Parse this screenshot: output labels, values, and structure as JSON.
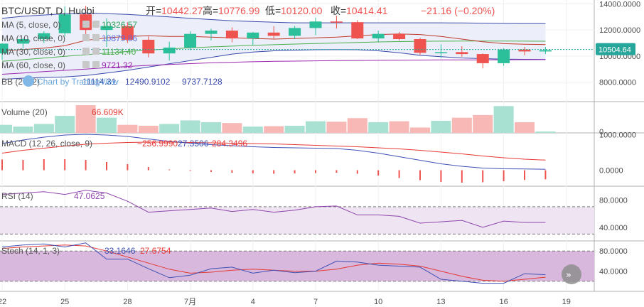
{
  "header": {
    "symbol": "BTC/USDT, D, Huobi",
    "open_label": "开=",
    "open": "10442.27",
    "high_label": "高=",
    "high": "10776.99",
    "low_label": "低=",
    "low": "10120.00",
    "close_label": "收=",
    "close": "10414.41",
    "change": "−21.16 (−0.20%)"
  },
  "colors": {
    "up": "#26a69a",
    "up_body": "#2bbf9a",
    "down": "#ef5350",
    "up_vol": "#a8e0d1",
    "down_vol": "#f7b8b6",
    "ma5": "#2fa35a",
    "ma10": "#5b6ee0",
    "ma30": "#4caf50",
    "ma60": "#9c27b0",
    "bb_band": "#3949ab",
    "bb_fill": "#eceff9",
    "macd": "#3f51b5",
    "signal": "#e53935",
    "rsi": "#8e44ad",
    "rsi_fill": "#efe4f2",
    "stoch_k": "#3f51b5",
    "stoch_d": "#e53935",
    "stoch_fill": "#d8b8dc",
    "price_tag": "#26a69a"
  },
  "price_panel": {
    "indicators": [
      {
        "label": "MA (5, close, 0)",
        "value": "10326.57",
        "color": "#2fa35a"
      },
      {
        "label": "MA (10, close, 0)",
        "value": "10879.86",
        "color": "#5b6ee0"
      },
      {
        "label": "MA (30, close, 0)",
        "value": "11134.40",
        "color": "#4caf50"
      },
      {
        "label": "MA (60, close, 0)",
        "value": "9721.32",
        "color": "#9c27b0"
      }
    ],
    "bb": {
      "label": "BB (20, 2)",
      "values": [
        "11114.31",
        "12490.9102",
        "9737.7128"
      ]
    },
    "last_price": "10504.64",
    "watermark": "Chart by TradingView"
  },
  "volume_panel": {
    "label": "Volume (20)",
    "value": "66.609K"
  },
  "macd_panel": {
    "label": "MACD (12, 26, close, 9)",
    "values": [
      "−256.9990",
      "27.3506",
      "284.3496"
    ]
  },
  "rsi_panel": {
    "label": "RSI (14)",
    "value": "47.0625"
  },
  "stoch_panel": {
    "label": "Stoch (14, 1, 3)",
    "values": [
      "33.1646",
      "27.6754"
    ]
  },
  "chart_data": {
    "type": "candlestick",
    "x_labels": [
      "22",
      "25",
      "28",
      "7月",
      "4",
      "7",
      "10",
      "13",
      "16",
      "19"
    ],
    "x_label_index": [
      0,
      3,
      6,
      9,
      12,
      15,
      18,
      21,
      24,
      27
    ],
    "candles": [
      {
        "o": 10200,
        "h": 11000,
        "l": 9700,
        "c": 10950
      },
      {
        "o": 10950,
        "h": 11400,
        "l": 10600,
        "c": 11300
      },
      {
        "o": 11300,
        "h": 11900,
        "l": 11000,
        "c": 11750
      },
      {
        "o": 11750,
        "h": 13800,
        "l": 11500,
        "c": 13200
      },
      {
        "o": 13200,
        "h": 13850,
        "l": 11500,
        "c": 12000
      },
      {
        "o": 12000,
        "h": 12900,
        "l": 10700,
        "c": 12300
      },
      {
        "o": 12300,
        "h": 12600,
        "l": 11000,
        "c": 11250
      },
      {
        "o": 11250,
        "h": 11500,
        "l": 9900,
        "c": 10200
      },
      {
        "o": 10200,
        "h": 11100,
        "l": 9650,
        "c": 10650
      },
      {
        "o": 10650,
        "h": 11900,
        "l": 10450,
        "c": 11700
      },
      {
        "o": 11700,
        "h": 12100,
        "l": 11200,
        "c": 11950
      },
      {
        "o": 11950,
        "h": 12200,
        "l": 11050,
        "c": 11350
      },
      {
        "o": 11350,
        "h": 11850,
        "l": 10850,
        "c": 11800
      },
      {
        "o": 11800,
        "h": 12300,
        "l": 11350,
        "c": 11550
      },
      {
        "o": 11550,
        "h": 12300,
        "l": 11300,
        "c": 12150
      },
      {
        "o": 12150,
        "h": 12950,
        "l": 11600,
        "c": 12650
      },
      {
        "o": 12650,
        "h": 13100,
        "l": 12100,
        "c": 12600
      },
      {
        "o": 12600,
        "h": 12750,
        "l": 11300,
        "c": 11350
      },
      {
        "o": 11350,
        "h": 11950,
        "l": 11100,
        "c": 11700
      },
      {
        "o": 11700,
        "h": 11850,
        "l": 11200,
        "c": 11300
      },
      {
        "o": 11300,
        "h": 11400,
        "l": 10100,
        "c": 10250
      },
      {
        "o": 10250,
        "h": 10900,
        "l": 9850,
        "c": 10300
      },
      {
        "o": 10300,
        "h": 10750,
        "l": 9950,
        "c": 10150
      },
      {
        "o": 10150,
        "h": 10200,
        "l": 9050,
        "c": 9450
      },
      {
        "o": 9450,
        "h": 10600,
        "l": 9250,
        "c": 10500
      },
      {
        "o": 10500,
        "h": 10700,
        "l": 10050,
        "c": 10350
      },
      {
        "o": 10350,
        "h": 10700,
        "l": 10150,
        "c": 10450
      }
    ],
    "volume": [
      18,
      14,
      20,
      38,
      62,
      34,
      18,
      16,
      20,
      28,
      24,
      22,
      14,
      15,
      16,
      26,
      25,
      33,
      24,
      26,
      12,
      27,
      34,
      40,
      60,
      24,
      3
    ],
    "ma10": [
      10400,
      10500,
      10600,
      10800,
      11200,
      11400,
      11500,
      11550,
      11500,
      11500,
      11450,
      11400,
      11350,
      11300,
      11350,
      11400,
      11450,
      11550,
      11650,
      11700,
      11650,
      11500,
      11300,
      11100,
      10950,
      10900,
      10880
    ],
    "ma30": [
      9600,
      9720,
      9850,
      9980,
      10100,
      10220,
      10350,
      10450,
      10550,
      10630,
      10700,
      10760,
      10820,
      10870,
      10920,
      10960,
      11000,
      11040,
      11080,
      11110,
      11130,
      11140,
      11150,
      11150,
      11145,
      11140,
      11134
    ],
    "ma60": [
      8600,
      8700,
      8800,
      8900,
      9000,
      9100,
      9200,
      9280,
      9350,
      9420,
      9480,
      9520,
      9560,
      9590,
      9610,
      9630,
      9650,
      9660,
      9670,
      9680,
      9690,
      9700,
      9705,
      9710,
      9715,
      9718,
      9721
    ],
    "bb_upper": [
      12900,
      13050,
      13150,
      13250,
      13300,
      13250,
      13200,
      13100,
      13000,
      12900,
      12800,
      12700,
      12650,
      12600,
      12550,
      12550,
      12550,
      12550,
      12550,
      12550,
      12550,
      12550,
      12540,
      12520,
      12500,
      12495,
      12491
    ],
    "bb_lower": [
      8200,
      8300,
      8350,
      8400,
      8500,
      8700,
      8900,
      9150,
      9400,
      9650,
      9900,
      10150,
      10300,
      10400,
      10450,
      10480,
      10490,
      10480,
      10400,
      10250,
      10050,
      9950,
      9850,
      9800,
      9760,
      9745,
      9738
    ],
    "macd": [
      750,
      850,
      930,
      990,
      1010,
      990,
      950,
      880,
      810,
      760,
      720,
      690,
      660,
      640,
      630,
      620,
      610,
      560,
      480,
      380,
      280,
      180,
      110,
      60,
      40,
      35,
      27
    ],
    "signal": [
      480,
      560,
      620,
      680,
      730,
      760,
      780,
      790,
      790,
      780,
      770,
      760,
      750,
      740,
      720,
      700,
      680,
      660,
      630,
      600,
      560,
      510,
      460,
      400,
      350,
      310,
      284
    ],
    "histogram": [
      300,
      290,
      310,
      310,
      290,
      230,
      170,
      90,
      20,
      -20,
      -50,
      -70,
      -90,
      -100,
      -90,
      -80,
      -70,
      -100,
      -150,
      -220,
      -280,
      -330,
      -350,
      -340,
      -310,
      -275,
      -257
    ],
    "rsi": [
      88,
      90,
      92,
      88,
      94,
      90,
      78,
      62,
      64,
      66,
      68,
      63,
      66,
      62,
      65,
      70,
      71,
      58,
      58,
      56,
      46,
      48,
      50,
      40,
      49,
      47,
      47
    ],
    "stoch_k": [
      88,
      92,
      94,
      88,
      96,
      64,
      64,
      45,
      27,
      32,
      45,
      48,
      36,
      42,
      37,
      40,
      60,
      58,
      52,
      50,
      48,
      24,
      20,
      16,
      16,
      35,
      33
    ],
    "stoch_d": [
      85,
      88,
      90,
      92,
      90,
      80,
      68,
      56,
      44,
      36,
      38,
      42,
      44,
      42,
      40,
      40,
      44,
      52,
      56,
      54,
      50,
      40,
      30,
      22,
      20,
      24,
      28
    ],
    "price_axis": {
      "ticks": [
        14000,
        12000,
        10000,
        8000
      ],
      "ylim": [
        6500,
        14300
      ]
    },
    "macd_axis": {
      "ticks": [
        1000,
        0
      ],
      "tick_labels": [
        "1000.0000",
        "0.0000"
      ],
      "ylim": [
        -450,
        1050
      ]
    },
    "rsi_axis": {
      "ticks": [
        80,
        40
      ],
      "tick_labels": [
        "80.0000",
        "40.0000"
      ],
      "bands": [
        70,
        30
      ],
      "ylim": [
        20,
        100
      ]
    },
    "stoch_axis": {
      "ticks": [
        80,
        40
      ],
      "tick_labels": [
        "80.0000",
        "40.0000"
      ],
      "bands": [
        80,
        20
      ],
      "ylim": [
        0,
        100
      ]
    },
    "volume_axis": {
      "ticks": [
        0
      ],
      "tick_labels": [
        "0"
      ],
      "ylim": [
        0,
        70
      ]
    }
  }
}
